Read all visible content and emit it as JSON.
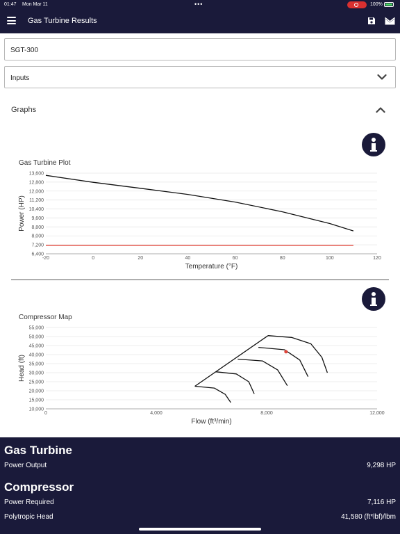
{
  "status": {
    "time": "01:47",
    "date": "Mon Mar 11",
    "dots": "•••",
    "battery": "100%"
  },
  "header": {
    "title": "Gas Turbine Results",
    "menu_icon": "hamburger-menu-icon",
    "save_icon": "save-icon",
    "mail_icon": "mail-icon"
  },
  "model_field": {
    "value": "SGT-300"
  },
  "inputs_field": {
    "label": "Inputs"
  },
  "graphs": {
    "label": "Graphs"
  },
  "chart_data": [
    {
      "type": "line",
      "title": "Gas Turbine Plot",
      "xlabel": "Temperature (°F)",
      "ylabel": "Power (HP)",
      "xlim": [
        -20,
        120
      ],
      "ylim": [
        6400,
        13600
      ],
      "xticks": [
        -20,
        0,
        20,
        40,
        60,
        80,
        100,
        120
      ],
      "yticks": [
        6400,
        7200,
        8000,
        8800,
        9600,
        10400,
        11200,
        12000,
        12800,
        13600
      ],
      "grid": true,
      "series": [
        {
          "color": "#111111",
          "x": [
            -20,
            0,
            20,
            40,
            60,
            80,
            100,
            110
          ],
          "y": [
            13400,
            12780,
            12250,
            11700,
            11020,
            10150,
            9100,
            8440
          ]
        },
        {
          "color": "#e0453a",
          "x": [
            -20,
            110
          ],
          "y": [
            7160,
            7160
          ]
        }
      ]
    },
    {
      "type": "line",
      "title": "Compressor Map",
      "xlabel": "Flow (ft³/min)",
      "ylabel": "Head (ft)",
      "xlim": [
        0,
        12000
      ],
      "ylim": [
        10000,
        55000
      ],
      "xticks": [
        0,
        4000,
        8000,
        12000
      ],
      "yticks": [
        10000,
        15000,
        20000,
        25000,
        30000,
        35000,
        40000,
        45000,
        50000,
        55000
      ],
      "grid": true,
      "series": [
        {
          "color": "#111111",
          "x": [
            5400,
            8050
          ],
          "y": [
            22500,
            50500
          ]
        },
        {
          "color": "#111111",
          "x": [
            5400,
            6100,
            6500,
            6700
          ],
          "y": [
            22500,
            21500,
            18000,
            13500
          ]
        },
        {
          "color": "#111111",
          "x": [
            6150,
            6900,
            7350,
            7550
          ],
          "y": [
            30500,
            29300,
            25000,
            18300
          ]
        },
        {
          "color": "#111111",
          "x": [
            6950,
            7850,
            8400,
            8750
          ],
          "y": [
            37500,
            36500,
            31500,
            22800
          ]
        },
        {
          "color": "#111111",
          "x": [
            7700,
            8650,
            9200,
            9500
          ],
          "y": [
            44000,
            42700,
            37000,
            27800
          ]
        },
        {
          "color": "#111111",
          "x": [
            8050,
            8900,
            9600,
            10000,
            10200
          ],
          "y": [
            50500,
            49500,
            46000,
            38500,
            30000
          ]
        }
      ],
      "points": [
        {
          "x": 8700,
          "y": 41580,
          "color": "#e0453a"
        }
      ]
    }
  ],
  "results": {
    "gas_turbine": {
      "heading": "Gas Turbine",
      "power_output_label": "Power Output",
      "power_output_value": "9,298 HP"
    },
    "compressor": {
      "heading": "Compressor",
      "power_required_label": "Power Required",
      "power_required_value": "7,116 HP",
      "polytropic_head_label": "Polytropic Head",
      "polytropic_head_value": "41,580 (ft*lbf)/lbm"
    }
  }
}
